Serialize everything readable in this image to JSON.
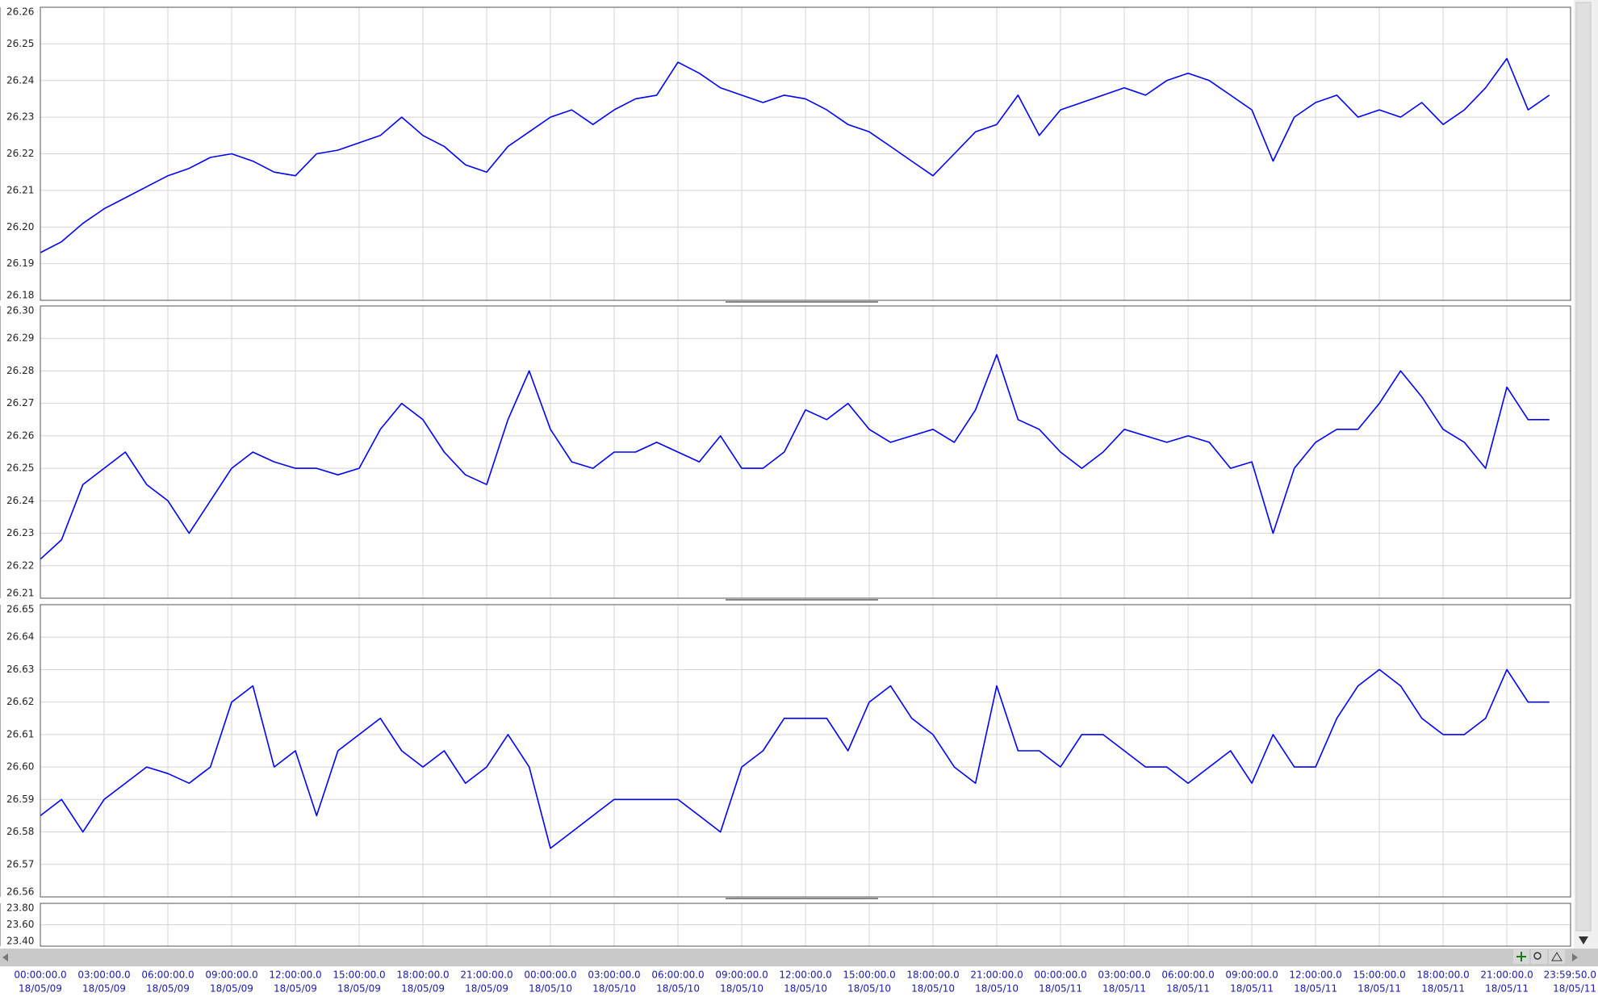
{
  "chart_data": [
    {
      "type": "line",
      "color": "#0000ff",
      "ylim": [
        26.18,
        26.26
      ],
      "yticks": [
        26.18,
        26.19,
        {
          "value": 26.2,
          "label": "26.20"
        },
        26.21,
        26.22,
        26.23,
        26.24,
        26.25,
        26.26
      ],
      "x": [
        "18/05/09 00:00:00.0",
        "18/05/09 01:00:00.0",
        "18/05/09 02:00:00.0",
        "18/05/09 03:00:00.0",
        "18/05/09 04:00:00.0",
        "18/05/09 05:00:00.0",
        "18/05/09 06:00:00.0",
        "18/05/09 07:00:00.0",
        "18/05/09 08:00:00.0",
        "18/05/09 09:00:00.0",
        "18/05/09 10:00:00.0",
        "18/05/09 11:00:00.0",
        "18/05/09 12:00:00.0",
        "18/05/09 13:00:00.0",
        "18/05/09 14:00:00.0",
        "18/05/09 15:00:00.0",
        "18/05/09 16:00:00.0",
        "18/05/09 17:00:00.0",
        "18/05/09 18:00:00.0",
        "18/05/09 19:00:00.0",
        "18/05/09 20:00:00.0",
        "18/05/09 21:00:00.0",
        "18/05/09 22:00:00.0",
        "18/05/09 23:00:00.0",
        "18/05/10 00:00:00.0",
        "18/05/10 01:00:00.0",
        "18/05/10 02:00:00.0",
        "18/05/10 03:00:00.0",
        "18/05/10 04:00:00.0",
        "18/05/10 05:00:00.0",
        "18/05/10 06:00:00.0",
        "18/05/10 07:00:00.0",
        "18/05/10 08:00:00.0",
        "18/05/10 09:00:00.0",
        "18/05/10 10:00:00.0",
        "18/05/10 11:00:00.0",
        "18/05/10 12:00:00.0",
        "18/05/10 13:00:00.0",
        "18/05/10 14:00:00.0",
        "18/05/10 15:00:00.0",
        "18/05/10 16:00:00.0",
        "18/05/10 17:00:00.0",
        "18/05/10 18:00:00.0",
        "18/05/10 19:00:00.0",
        "18/05/10 20:00:00.0",
        "18/05/10 21:00:00.0",
        "18/05/10 22:00:00.0",
        "18/05/10 23:00:00.0",
        "18/05/11 00:00:00.0",
        "18/05/11 01:00:00.0",
        "18/05/11 02:00:00.0",
        "18/05/11 03:00:00.0",
        "18/05/11 04:00:00.0",
        "18/05/11 05:00:00.0",
        "18/05/11 06:00:00.0",
        "18/05/11 07:00:00.0",
        "18/05/11 08:00:00.0",
        "18/05/11 09:00:00.0",
        "18/05/11 10:00:00.0",
        "18/05/11 11:00:00.0",
        "18/05/11 12:00:00.0",
        "18/05/11 13:00:00.0",
        "18/05/11 14:00:00.0",
        "18/05/11 15:00:00.0",
        "18/05/11 16:00:00.0",
        "18/05/11 17:00:00.0",
        "18/05/11 18:00:00.0",
        "18/05/11 19:00:00.0",
        "18/05/11 20:00:00.0",
        "18/05/11 21:00:00.0",
        "18/05/11 22:00:00.0",
        "18/05/11 23:00:00.0"
      ],
      "values": [
        26.193,
        26.196,
        26.201,
        26.205,
        26.208,
        26.211,
        26.214,
        26.216,
        26.219,
        26.22,
        26.218,
        26.215,
        26.214,
        26.22,
        26.221,
        26.223,
        26.225,
        26.23,
        26.225,
        26.222,
        26.217,
        26.215,
        26.222,
        26.226,
        26.23,
        26.232,
        26.228,
        26.232,
        26.235,
        26.236,
        26.245,
        26.242,
        26.238,
        26.236,
        26.234,
        26.236,
        26.235,
        26.232,
        26.228,
        26.226,
        26.222,
        26.218,
        26.214,
        26.22,
        26.226,
        26.228,
        26.236,
        26.225,
        26.232,
        26.234,
        26.236,
        26.238,
        26.236,
        26.24,
        26.242,
        26.24,
        26.236,
        26.232,
        26.218,
        26.23,
        26.234,
        26.236,
        26.23,
        26.232,
        26.23,
        26.234,
        26.228,
        26.232,
        26.238,
        26.246,
        26.232,
        26.236
      ]
    },
    {
      "type": "line",
      "color": "#0000ff",
      "ylim": [
        26.21,
        26.3
      ],
      "yticks": [
        26.21,
        26.22,
        26.23,
        26.24,
        26.25,
        26.26,
        26.27,
        26.28,
        26.29,
        {
          "value": 26.3,
          "label": "26.30"
        }
      ],
      "x": [
        "18/05/09 00:00:00.0",
        "18/05/09 01:00:00.0",
        "18/05/09 02:00:00.0",
        "18/05/09 03:00:00.0",
        "18/05/09 04:00:00.0",
        "18/05/09 05:00:00.0",
        "18/05/09 06:00:00.0",
        "18/05/09 07:00:00.0",
        "18/05/09 08:00:00.0",
        "18/05/09 09:00:00.0",
        "18/05/09 10:00:00.0",
        "18/05/09 11:00:00.0",
        "18/05/09 12:00:00.0",
        "18/05/09 13:00:00.0",
        "18/05/09 14:00:00.0",
        "18/05/09 15:00:00.0",
        "18/05/09 16:00:00.0",
        "18/05/09 17:00:00.0",
        "18/05/09 18:00:00.0",
        "18/05/09 19:00:00.0",
        "18/05/09 20:00:00.0",
        "18/05/09 21:00:00.0",
        "18/05/09 22:00:00.0",
        "18/05/09 23:00:00.0",
        "18/05/10 00:00:00.0",
        "18/05/10 01:00:00.0",
        "18/05/10 02:00:00.0",
        "18/05/10 03:00:00.0",
        "18/05/10 04:00:00.0",
        "18/05/10 05:00:00.0",
        "18/05/10 06:00:00.0",
        "18/05/10 07:00:00.0",
        "18/05/10 08:00:00.0",
        "18/05/10 09:00:00.0",
        "18/05/10 10:00:00.0",
        "18/05/10 11:00:00.0",
        "18/05/10 12:00:00.0",
        "18/05/10 13:00:00.0",
        "18/05/10 14:00:00.0",
        "18/05/10 15:00:00.0",
        "18/05/10 16:00:00.0",
        "18/05/10 17:00:00.0",
        "18/05/10 18:00:00.0",
        "18/05/10 19:00:00.0",
        "18/05/10 20:00:00.0",
        "18/05/10 21:00:00.0",
        "18/05/10 22:00:00.0",
        "18/05/10 23:00:00.0",
        "18/05/11 00:00:00.0",
        "18/05/11 01:00:00.0",
        "18/05/11 02:00:00.0",
        "18/05/11 03:00:00.0",
        "18/05/11 04:00:00.0",
        "18/05/11 05:00:00.0",
        "18/05/11 06:00:00.0",
        "18/05/11 07:00:00.0",
        "18/05/11 08:00:00.0",
        "18/05/11 09:00:00.0",
        "18/05/11 10:00:00.0",
        "18/05/11 11:00:00.0",
        "18/05/11 12:00:00.0",
        "18/05/11 13:00:00.0",
        "18/05/11 14:00:00.0",
        "18/05/11 15:00:00.0",
        "18/05/11 16:00:00.0",
        "18/05/11 17:00:00.0",
        "18/05/11 18:00:00.0",
        "18/05/11 19:00:00.0",
        "18/05/11 20:00:00.0",
        "18/05/11 21:00:00.0",
        "18/05/11 22:00:00.0",
        "18/05/11 23:00:00.0"
      ],
      "values": [
        26.222,
        26.228,
        26.245,
        26.25,
        26.255,
        26.245,
        26.24,
        26.23,
        26.24,
        26.25,
        26.255,
        26.252,
        26.25,
        26.25,
        26.248,
        26.25,
        26.262,
        26.27,
        26.265,
        26.255,
        26.248,
        26.245,
        26.265,
        26.28,
        26.262,
        26.252,
        26.25,
        26.255,
        26.255,
        26.258,
        26.255,
        26.252,
        26.26,
        26.25,
        26.25,
        26.255,
        26.268,
        26.265,
        26.27,
        26.262,
        26.258,
        26.26,
        26.262,
        26.258,
        26.268,
        26.285,
        26.265,
        26.262,
        26.255,
        26.25,
        26.255,
        26.262,
        26.26,
        26.258,
        26.26,
        26.258,
        26.25,
        26.252,
        26.23,
        26.25,
        26.258,
        26.262,
        26.262,
        26.27,
        26.28,
        26.272,
        26.262,
        26.258,
        26.25,
        26.275,
        26.265,
        26.265
      ]
    },
    {
      "type": "line",
      "color": "#0000ff",
      "ylim": [
        26.56,
        26.65
      ],
      "yticks": [
        26.56,
        26.57,
        26.58,
        26.59,
        {
          "value": 26.6,
          "label": "26.60"
        },
        26.61,
        26.62,
        26.63,
        26.64,
        26.65
      ],
      "x": [
        "18/05/09 00:00:00.0",
        "18/05/09 01:00:00.0",
        "18/05/09 02:00:00.0",
        "18/05/09 03:00:00.0",
        "18/05/09 04:00:00.0",
        "18/05/09 05:00:00.0",
        "18/05/09 06:00:00.0",
        "18/05/09 07:00:00.0",
        "18/05/09 08:00:00.0",
        "18/05/09 09:00:00.0",
        "18/05/09 10:00:00.0",
        "18/05/09 11:00:00.0",
        "18/05/09 12:00:00.0",
        "18/05/09 13:00:00.0",
        "18/05/09 14:00:00.0",
        "18/05/09 15:00:00.0",
        "18/05/09 16:00:00.0",
        "18/05/09 17:00:00.0",
        "18/05/09 18:00:00.0",
        "18/05/09 19:00:00.0",
        "18/05/09 20:00:00.0",
        "18/05/09 21:00:00.0",
        "18/05/09 22:00:00.0",
        "18/05/09 23:00:00.0",
        "18/05/10 00:00:00.0",
        "18/05/10 01:00:00.0",
        "18/05/10 02:00:00.0",
        "18/05/10 03:00:00.0",
        "18/05/10 04:00:00.0",
        "18/05/10 05:00:00.0",
        "18/05/10 06:00:00.0",
        "18/05/10 07:00:00.0",
        "18/05/10 08:00:00.0",
        "18/05/10 09:00:00.0",
        "18/05/10 10:00:00.0",
        "18/05/10 11:00:00.0",
        "18/05/10 12:00:00.0",
        "18/05/10 13:00:00.0",
        "18/05/10 14:00:00.0",
        "18/05/10 15:00:00.0",
        "18/05/10 16:00:00.0",
        "18/05/10 17:00:00.0",
        "18/05/10 18:00:00.0",
        "18/05/10 19:00:00.0",
        "18/05/10 20:00:00.0",
        "18/05/10 21:00:00.0",
        "18/05/10 22:00:00.0",
        "18/05/10 23:00:00.0",
        "18/05/11 00:00:00.0",
        "18/05/11 01:00:00.0",
        "18/05/11 02:00:00.0",
        "18/05/11 03:00:00.0",
        "18/05/11 04:00:00.0",
        "18/05/11 05:00:00.0",
        "18/05/11 06:00:00.0",
        "18/05/11 07:00:00.0",
        "18/05/11 08:00:00.0",
        "18/05/11 09:00:00.0",
        "18/05/11 10:00:00.0",
        "18/05/11 11:00:00.0",
        "18/05/11 12:00:00.0",
        "18/05/11 13:00:00.0",
        "18/05/11 14:00:00.0",
        "18/05/11 15:00:00.0",
        "18/05/11 16:00:00.0",
        "18/05/11 17:00:00.0",
        "18/05/11 18:00:00.0",
        "18/05/11 19:00:00.0",
        "18/05/11 20:00:00.0",
        "18/05/11 21:00:00.0",
        "18/05/11 22:00:00.0",
        "18/05/11 23:00:00.0"
      ],
      "values": [
        26.585,
        26.59,
        26.58,
        26.59,
        26.595,
        26.6,
        26.598,
        26.595,
        26.6,
        26.62,
        26.625,
        26.6,
        26.605,
        26.585,
        26.605,
        26.61,
        26.615,
        26.605,
        26.6,
        26.605,
        26.595,
        26.6,
        26.61,
        26.6,
        26.575,
        26.58,
        26.585,
        26.59,
        26.59,
        26.59,
        26.59,
        26.585,
        26.58,
        26.6,
        26.605,
        26.615,
        26.615,
        26.615,
        26.605,
        26.62,
        26.625,
        26.615,
        26.61,
        26.6,
        26.595,
        26.625,
        26.605,
        26.605,
        26.6,
        26.61,
        26.61,
        26.605,
        26.6,
        26.6,
        26.595,
        26.6,
        26.605,
        26.595,
        26.61,
        26.6,
        26.6,
        26.615,
        26.625,
        26.63,
        26.625,
        26.615,
        26.61,
        26.61,
        26.615,
        26.63,
        26.62,
        26.62
      ]
    },
    {
      "type": "line",
      "ylim": [
        23.4,
        23.8
      ],
      "yticks": [
        {
          "value": 23.4,
          "label": "23.40"
        },
        {
          "value": 23.6,
          "label": "23.60"
        },
        {
          "value": 23.8,
          "label": "23.80"
        }
      ],
      "xlim": [
        "18/05/09 00:00:00.0",
        "18/05/11 23:59:50.0"
      ],
      "xticks": [
        {
          "time": "00:00:00.0",
          "date": "18/05/09"
        },
        {
          "time": "03:00:00.0",
          "date": "18/05/09"
        },
        {
          "time": "06:00:00.0",
          "date": "18/05/09"
        },
        {
          "time": "09:00:00.0",
          "date": "18/05/09"
        },
        {
          "time": "12:00:00.0",
          "date": "18/05/09"
        },
        {
          "time": "15:00:00.0",
          "date": "18/05/09"
        },
        {
          "time": "18:00:00.0",
          "date": "18/05/09"
        },
        {
          "time": "21:00:00.0",
          "date": "18/05/09"
        },
        {
          "time": "00:00:00.0",
          "date": "18/05/10"
        },
        {
          "time": "03:00:00.0",
          "date": "18/05/10"
        },
        {
          "time": "06:00:00.0",
          "date": "18/05/10"
        },
        {
          "time": "09:00:00.0",
          "date": "18/05/10"
        },
        {
          "time": "12:00:00.0",
          "date": "18/05/10"
        },
        {
          "time": "15:00:00.0",
          "date": "18/05/10"
        },
        {
          "time": "18:00:00.0",
          "date": "18/05/10"
        },
        {
          "time": "21:00:00.0",
          "date": "18/05/10"
        },
        {
          "time": "00:00:00.0",
          "date": "18/05/11"
        },
        {
          "time": "03:00:00.0",
          "date": "18/05/11"
        },
        {
          "time": "06:00:00.0",
          "date": "18/05/11"
        },
        {
          "time": "09:00:00.0",
          "date": "18/05/11"
        },
        {
          "time": "12:00:00.0",
          "date": "18/05/11"
        },
        {
          "time": "15:00:00.0",
          "date": "18/05/11"
        },
        {
          "time": "18:00:00.0",
          "date": "18/05/11"
        },
        {
          "time": "21:00:00.0",
          "date": "18/05/11"
        },
        {
          "time": "23:59:50.0",
          "date": "18/05/11"
        }
      ]
    }
  ]
}
